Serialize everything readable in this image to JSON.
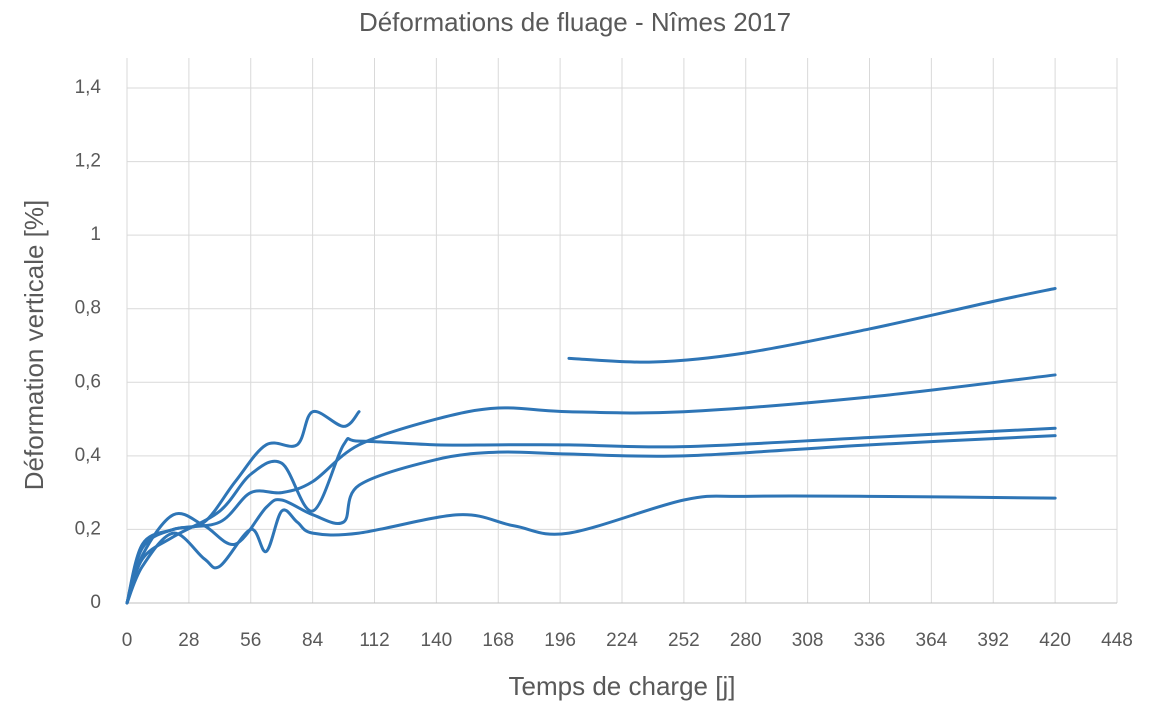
{
  "chart_data": {
    "type": "line",
    "title": "Déformations de fluage - Nîmes 2017",
    "x_label": "Temps de charge [j]",
    "y_label": "Déformation  verticale [%]",
    "xlim": [
      0,
      448
    ],
    "xticks": [
      0,
      28,
      56,
      84,
      112,
      140,
      168,
      196,
      224,
      252,
      280,
      308,
      336,
      364,
      392,
      420,
      448
    ],
    "ylim": [
      0,
      1.4
    ],
    "yticks": [
      0,
      {
        "value": 0.2,
        "label": "0,2"
      },
      {
        "value": 0.4,
        "label": "0,4"
      },
      {
        "value": 0.6,
        "label": "0,6"
      },
      {
        "value": 0.8,
        "label": "0,8"
      },
      1,
      {
        "value": 1.2,
        "label": "1,2"
      },
      {
        "value": 1.4,
        "label": "1,4"
      }
    ],
    "grid": true,
    "series": [
      {
        "color": "#2e75b6",
        "x": [
          200,
          238,
          280,
          336,
          392,
          420
        ],
        "values": [
          0.665,
          0.655,
          0.68,
          0.745,
          0.82,
          0.855
        ]
      },
      {
        "color": "#2e75b6",
        "x": [
          0,
          7,
          21,
          35,
          49,
          63,
          77,
          84,
          98,
          105
        ],
        "values": [
          0,
          0.16,
          0.2,
          0.22,
          0.33,
          0.43,
          0.43,
          0.52,
          0.48,
          0.52
        ]
      },
      {
        "color": "#2e75b6",
        "x": [
          0,
          7,
          21,
          42,
          56,
          70,
          84,
          98,
          105,
          140,
          168,
          200,
          252,
          336,
          420
        ],
        "values": [
          0,
          0.12,
          0.18,
          0.25,
          0.35,
          0.38,
          0.25,
          0.43,
          0.44,
          0.43,
          0.43,
          0.43,
          0.425,
          0.45,
          0.475
        ]
      },
      {
        "color": "#2e75b6",
        "x": [
          0,
          7,
          21,
          42,
          56,
          70,
          84,
          105,
          140,
          168,
          200,
          252,
          336,
          420
        ],
        "values": [
          0,
          0.15,
          0.2,
          0.22,
          0.3,
          0.3,
          0.33,
          0.43,
          0.5,
          0.53,
          0.52,
          0.52,
          0.56,
          0.62
        ]
      },
      {
        "color": "#2e75b6",
        "x": [
          0,
          7,
          21,
          35,
          49,
          63,
          70,
          84,
          98,
          105,
          140,
          168,
          200,
          252,
          336,
          420
        ],
        "values": [
          0,
          0.13,
          0.24,
          0.21,
          0.16,
          0.26,
          0.28,
          0.24,
          0.22,
          0.32,
          0.39,
          0.41,
          0.405,
          0.4,
          0.43,
          0.455
        ]
      },
      {
        "color": "#2e75b6",
        "x": [
          0,
          7,
          21,
          35,
          42,
          56,
          63,
          70,
          77,
          84,
          105,
          150,
          175,
          200,
          252,
          280,
          336,
          420
        ],
        "values": [
          0,
          0.1,
          0.19,
          0.12,
          0.1,
          0.2,
          0.14,
          0.25,
          0.22,
          0.19,
          0.19,
          0.24,
          0.21,
          0.19,
          0.28,
          0.29,
          0.29,
          0.285
        ]
      }
    ]
  }
}
